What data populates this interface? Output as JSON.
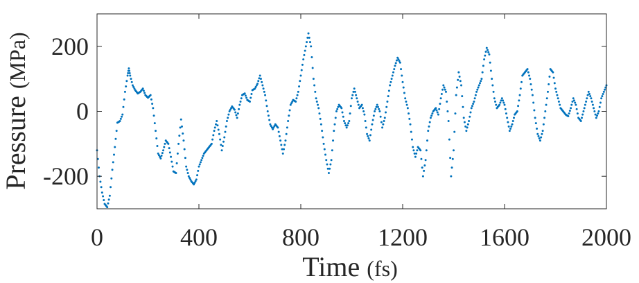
{
  "chart_data": {
    "type": "scatter",
    "xlabel": "Time",
    "xunit": "(fs)",
    "ylabel": "Pressure",
    "yunit": "(MPa)",
    "xlim": [
      0,
      2000
    ],
    "ylim": [
      -300,
      300
    ],
    "xticks": [
      0,
      400,
      800,
      1200,
      1600,
      2000
    ],
    "yticks": [
      200,
      0,
      -200
    ],
    "grid": false,
    "marker_color": "#0072BD",
    "series": [
      {
        "points": [
          [
            0,
            -120
          ],
          [
            10,
            -200
          ],
          [
            20,
            -250
          ],
          [
            30,
            -285
          ],
          [
            40,
            -295
          ],
          [
            50,
            -260
          ],
          [
            60,
            -180
          ],
          [
            70,
            -110
          ],
          [
            80,
            -35
          ],
          [
            90,
            -30
          ],
          [
            100,
            -10
          ],
          [
            110,
            60
          ],
          [
            120,
            110
          ],
          [
            125,
            132
          ],
          [
            130,
            110
          ],
          [
            140,
            80
          ],
          [
            150,
            65
          ],
          [
            160,
            55
          ],
          [
            170,
            60
          ],
          [
            180,
            70
          ],
          [
            190,
            50
          ],
          [
            200,
            42
          ],
          [
            210,
            50
          ],
          [
            220,
            10
          ],
          [
            230,
            -60
          ],
          [
            240,
            -130
          ],
          [
            250,
            -145
          ],
          [
            260,
            -120
          ],
          [
            270,
            -90
          ],
          [
            280,
            -100
          ],
          [
            290,
            -140
          ],
          [
            300,
            -185
          ],
          [
            310,
            -190
          ],
          [
            320,
            -100
          ],
          [
            330,
            -25
          ],
          [
            340,
            -90
          ],
          [
            350,
            -170
          ],
          [
            360,
            -200
          ],
          [
            370,
            -215
          ],
          [
            380,
            -225
          ],
          [
            390,
            -210
          ],
          [
            400,
            -170
          ],
          [
            410,
            -150
          ],
          [
            420,
            -130
          ],
          [
            430,
            -120
          ],
          [
            440,
            -110
          ],
          [
            450,
            -100
          ],
          [
            460,
            -60
          ],
          [
            470,
            -30
          ],
          [
            480,
            -70
          ],
          [
            490,
            -120
          ],
          [
            500,
            -80
          ],
          [
            510,
            -30
          ],
          [
            520,
            0
          ],
          [
            530,
            15
          ],
          [
            540,
            5
          ],
          [
            550,
            -20
          ],
          [
            560,
            20
          ],
          [
            570,
            50
          ],
          [
            580,
            55
          ],
          [
            590,
            35
          ],
          [
            600,
            30
          ],
          [
            610,
            65
          ],
          [
            620,
            70
          ],
          [
            630,
            85
          ],
          [
            640,
            110
          ],
          [
            650,
            80
          ],
          [
            660,
            50
          ],
          [
            670,
            0
          ],
          [
            680,
            -40
          ],
          [
            690,
            -55
          ],
          [
            700,
            -40
          ],
          [
            710,
            -50
          ],
          [
            720,
            -90
          ],
          [
            730,
            -130
          ],
          [
            740,
            -90
          ],
          [
            750,
            -30
          ],
          [
            760,
            20
          ],
          [
            770,
            35
          ],
          [
            780,
            30
          ],
          [
            790,
            60
          ],
          [
            800,
            110
          ],
          [
            810,
            160
          ],
          [
            820,
            200
          ],
          [
            830,
            240
          ],
          [
            840,
            200
          ],
          [
            850,
            100
          ],
          [
            860,
            40
          ],
          [
            870,
            10
          ],
          [
            880,
            -40
          ],
          [
            890,
            -100
          ],
          [
            900,
            -150
          ],
          [
            910,
            -190
          ],
          [
            920,
            -150
          ],
          [
            930,
            -60
          ],
          [
            940,
            0
          ],
          [
            950,
            20
          ],
          [
            960,
            10
          ],
          [
            970,
            -30
          ],
          [
            980,
            -50
          ],
          [
            990,
            -30
          ],
          [
            1000,
            40
          ],
          [
            1010,
            70
          ],
          [
            1020,
            40
          ],
          [
            1030,
            10
          ],
          [
            1040,
            20
          ],
          [
            1050,
            -10
          ],
          [
            1060,
            -70
          ],
          [
            1070,
            -90
          ],
          [
            1080,
            -40
          ],
          [
            1090,
            0
          ],
          [
            1100,
            20
          ],
          [
            1110,
            0
          ],
          [
            1120,
            -50
          ],
          [
            1130,
            -20
          ],
          [
            1140,
            30
          ],
          [
            1150,
            80
          ],
          [
            1160,
            110
          ],
          [
            1170,
            140
          ],
          [
            1180,
            165
          ],
          [
            1190,
            150
          ],
          [
            1200,
            90
          ],
          [
            1210,
            40
          ],
          [
            1220,
            10
          ],
          [
            1230,
            -40
          ],
          [
            1240,
            -110
          ],
          [
            1250,
            -140
          ],
          [
            1260,
            -110
          ],
          [
            1270,
            -120
          ],
          [
            1280,
            -200
          ],
          [
            1290,
            -150
          ],
          [
            1300,
            -60
          ],
          [
            1310,
            -20
          ],
          [
            1320,
            0
          ],
          [
            1330,
            10
          ],
          [
            1340,
            -10
          ],
          [
            1350,
            40
          ],
          [
            1360,
            80
          ],
          [
            1370,
            60
          ],
          [
            1380,
            -30
          ],
          [
            1390,
            -200
          ],
          [
            1400,
            -120
          ],
          [
            1410,
            50
          ],
          [
            1420,
            120
          ],
          [
            1430,
            80
          ],
          [
            1440,
            -20
          ],
          [
            1450,
            -60
          ],
          [
            1460,
            -30
          ],
          [
            1470,
            10
          ],
          [
            1480,
            30
          ],
          [
            1490,
            60
          ],
          [
            1500,
            80
          ],
          [
            1510,
            100
          ],
          [
            1520,
            160
          ],
          [
            1530,
            195
          ],
          [
            1540,
            175
          ],
          [
            1550,
            100
          ],
          [
            1560,
            40
          ],
          [
            1570,
            10
          ],
          [
            1580,
            20
          ],
          [
            1590,
            40
          ],
          [
            1600,
            20
          ],
          [
            1610,
            -20
          ],
          [
            1620,
            -60
          ],
          [
            1630,
            -40
          ],
          [
            1640,
            -10
          ],
          [
            1650,
            0
          ],
          [
            1660,
            50
          ],
          [
            1670,
            110
          ],
          [
            1680,
            120
          ],
          [
            1690,
            130
          ],
          [
            1700,
            100
          ],
          [
            1710,
            50
          ],
          [
            1720,
            -20
          ],
          [
            1730,
            -70
          ],
          [
            1740,
            -90
          ],
          [
            1750,
            -60
          ],
          [
            1760,
            0
          ],
          [
            1770,
            60
          ],
          [
            1780,
            130
          ],
          [
            1790,
            120
          ],
          [
            1800,
            70
          ],
          [
            1810,
            40
          ],
          [
            1820,
            10
          ],
          [
            1830,
            0
          ],
          [
            1840,
            -10
          ],
          [
            1850,
            -15
          ],
          [
            1860,
            10
          ],
          [
            1870,
            40
          ],
          [
            1880,
            20
          ],
          [
            1890,
            -20
          ],
          [
            1900,
            -30
          ],
          [
            1910,
            0
          ],
          [
            1920,
            30
          ],
          [
            1930,
            60
          ],
          [
            1940,
            40
          ],
          [
            1950,
            10
          ],
          [
            1960,
            -20
          ],
          [
            1970,
            0
          ],
          [
            1980,
            40
          ],
          [
            1990,
            60
          ],
          [
            2000,
            80
          ]
        ]
      }
    ]
  }
}
